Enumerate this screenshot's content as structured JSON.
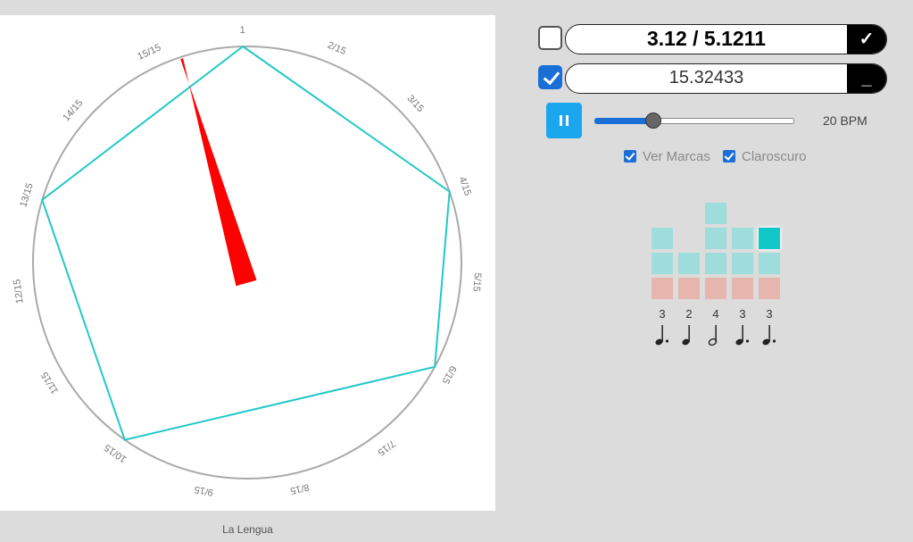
{
  "dial": {
    "labels": [
      "1",
      "2/15",
      "3/15",
      "4/15",
      "5/15",
      "6/15",
      "7/15",
      "8/15",
      "9/15",
      "10/15",
      "11/15",
      "12/15",
      "13/15",
      "14/15",
      "15/15"
    ],
    "polygon_steps": [
      0,
      3,
      5,
      9,
      12
    ],
    "hand_step": 14.3,
    "colors": {
      "polygon": "#22c8c8",
      "hand": "#ff0000",
      "circle": "#aaaaaa"
    }
  },
  "footer": {
    "label": "La Lengua"
  },
  "fields": {
    "ratio": {
      "value": "3.12 / 5.1211",
      "checked": false,
      "button": "✓"
    },
    "decimal": {
      "value": "15.32433",
      "checked": true,
      "button": "_"
    }
  },
  "playback": {
    "state": "paused",
    "icon": "pause-icon",
    "bpm_label": "20 BPM",
    "tempo_fraction": 0.28
  },
  "options": {
    "ver_marcas": "Ver Marcas",
    "claroscuro": "Claroscuro"
  },
  "rhythm": {
    "groups": [
      {
        "count": "3",
        "note": "dotted-quarter-note-icon"
      },
      {
        "count": "2",
        "note": "quarter-note-icon"
      },
      {
        "count": "4",
        "note": "half-note-icon"
      },
      {
        "count": "3",
        "note": "dotted-quarter-note-icon"
      },
      {
        "count": "3",
        "note": "dotted-quarter-note-icon"
      }
    ],
    "active_group": 4
  }
}
